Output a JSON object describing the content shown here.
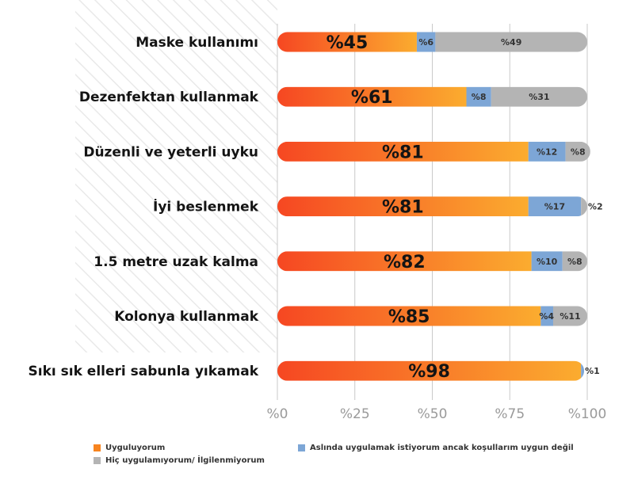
{
  "chart_data": {
    "type": "bar",
    "orientation": "horizontal",
    "stacked": true,
    "categories": [
      "Maske kullanımı",
      "Dezenfektan kullanmak",
      "Düzenli ve yeterli uyku",
      "İyi beslenmek",
      "1.5 metre uzak kalma",
      "Kolonya kullanmak",
      "Sıkı sık elleri sabunla yıkamak"
    ],
    "series": [
      {
        "name": "Uyguluyorum",
        "color": "#f7841f",
        "values": [
          45,
          61,
          81,
          81,
          82,
          85,
          98
        ]
      },
      {
        "name": "Aslında uygulamak istiyorum ancak koşullarım uygun değil",
        "color": "#7da6d6",
        "values": [
          6,
          8,
          12,
          17,
          10,
          4,
          1
        ]
      },
      {
        "name": "Hiç uygulamıyorum/ İlgilenmiyorum",
        "color": "#b4b4b4",
        "values": [
          49,
          31,
          8,
          2,
          8,
          11,
          0
        ]
      }
    ],
    "data_labels": [
      [
        "%45",
        "%61",
        "%81",
        "%81",
        "%82",
        "%85",
        "%98"
      ],
      [
        "%6",
        "%8",
        "%12",
        "%17",
        "%10",
        "%4",
        "%1"
      ],
      [
        "%49",
        "%31",
        "%8",
        "%2",
        "%8",
        "%11",
        ""
      ]
    ],
    "xlim": [
      0,
      100
    ],
    "xticks": [
      0,
      25,
      50,
      75,
      100
    ],
    "xtick_labels": [
      "%0",
      "%25",
      "%50",
      "%75",
      "%100"
    ],
    "grid": true,
    "legend_position": "bottom"
  }
}
